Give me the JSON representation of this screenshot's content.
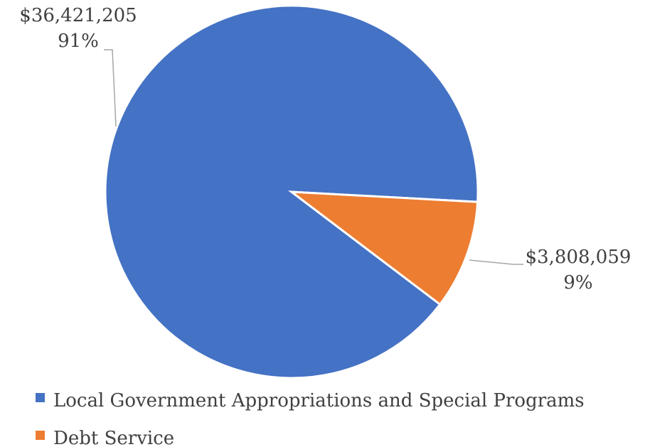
{
  "chart_data": {
    "type": "pie",
    "title": "",
    "slices": [
      {
        "label": "Local Government Appropriations and Special Programs",
        "value": 36421205,
        "value_label": "$36,421,205",
        "percent_label": "91%",
        "color": "#4472C4"
      },
      {
        "label": "Debt Service",
        "value": 3808059,
        "value_label": "$3,808,059",
        "percent_label": "9%",
        "color": "#ED7D31"
      }
    ],
    "legend": {
      "position": "bottom-left"
    }
  }
}
